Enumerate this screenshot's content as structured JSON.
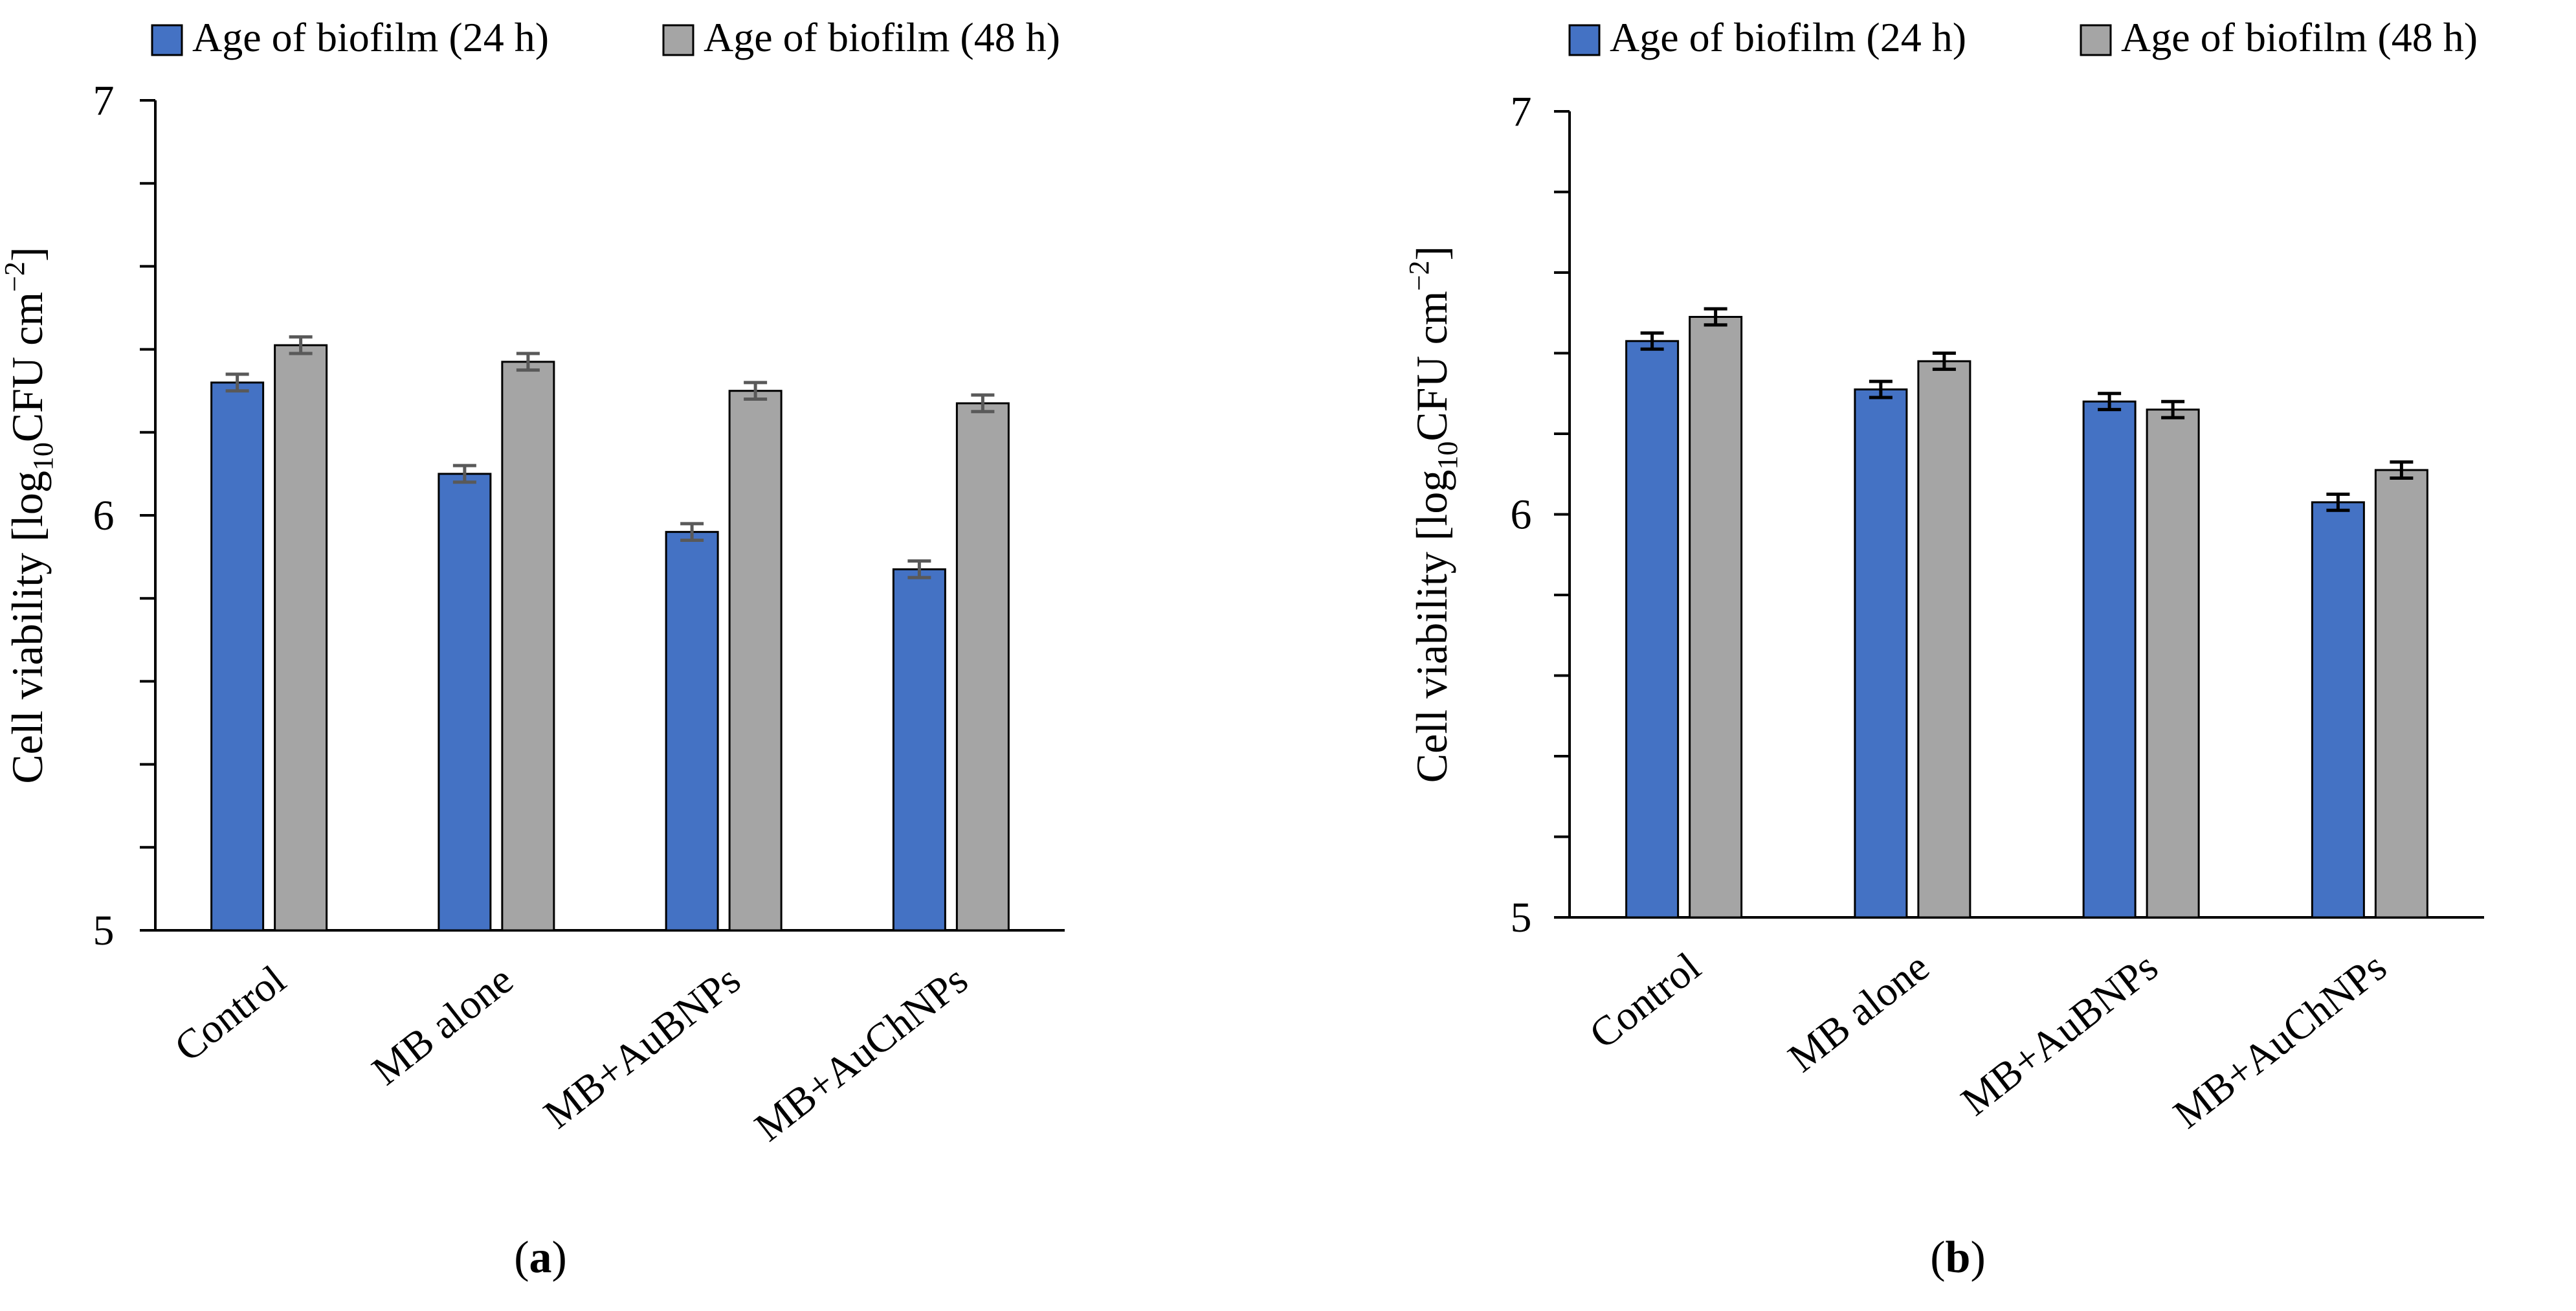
{
  "chart_data": [
    {
      "type": "bar",
      "panel_label": "a",
      "categories": [
        "Control",
        "MB alone",
        "MB+AuBNPs",
        "MB+AuChNPs"
      ],
      "series": [
        {
          "name": "Age of biofilm (24 h)",
          "color": "#4472C4",
          "values": [
            6.32,
            6.1,
            5.96,
            5.87
          ],
          "errors": [
            0.02,
            0.02,
            0.02,
            0.02
          ]
        },
        {
          "name": "Age of biofilm (48 h)",
          "color": "#A5A5A5",
          "values": [
            6.41,
            6.37,
            6.3,
            6.27
          ],
          "errors": [
            0.02,
            0.02,
            0.02,
            0.02
          ]
        }
      ],
      "ylabel_main": "Cell viability [log",
      "ylabel_sub": "10",
      "ylabel_rest": "CFU cm",
      "ylabel_sup": "−2",
      "ylabel_close": "]",
      "ylim": [
        5,
        7
      ],
      "yticks": [
        "5",
        "6",
        "7"
      ],
      "error_color": "#595959",
      "legend_position": "top"
    },
    {
      "type": "bar",
      "panel_label": "b",
      "categories": [
        "Control",
        "MB alone",
        "MB+AuBNPs",
        "MB+AuChNPs"
      ],
      "series": [
        {
          "name": "Age of biofilm (24 h)",
          "color": "#4472C4",
          "values": [
            6.43,
            6.31,
            6.28,
            6.03
          ],
          "errors": [
            0.02,
            0.02,
            0.02,
            0.02
          ]
        },
        {
          "name": "Age of biofilm (48 h)",
          "color": "#A5A5A5",
          "values": [
            6.49,
            6.38,
            6.26,
            6.11
          ],
          "errors": [
            0.02,
            0.02,
            0.02,
            0.02
          ]
        }
      ],
      "ylabel_main": "Cell viability [log",
      "ylabel_sub": "10",
      "ylabel_rest": "CFU cm",
      "ylabel_sup": "−2",
      "ylabel_close": "]",
      "ylim": [
        5,
        7
      ],
      "yticks": [
        "5",
        "6",
        "7"
      ],
      "error_color": "#000000",
      "legend_position": "top"
    }
  ]
}
